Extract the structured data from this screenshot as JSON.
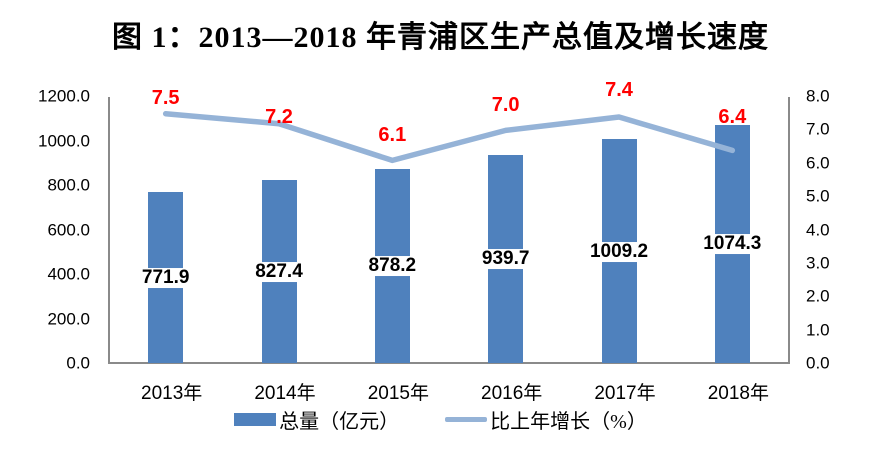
{
  "title": "图 1：2013—2018 年青浦区生产总值及增长速度",
  "chart_data": {
    "type": "bar+line",
    "categories": [
      "2013年",
      "2014年",
      "2015年",
      "2016年",
      "2017年",
      "2018年"
    ],
    "series": [
      {
        "name": "总量（亿元）",
        "type": "bar",
        "axis": "left",
        "color": "#4F81BD",
        "values": [
          771.9,
          827.4,
          878.2,
          939.7,
          1009.2,
          1074.3
        ],
        "labels": [
          "771.9",
          "827.4",
          "878.2",
          "939.7",
          "1009.2",
          "1074.3"
        ],
        "label_color": "#000000"
      },
      {
        "name": "比上年增长（%）",
        "type": "line",
        "axis": "right",
        "color": "#95B3D7",
        "values": [
          7.5,
          7.2,
          6.1,
          7.0,
          7.4,
          6.4
        ],
        "labels": [
          "7.5",
          "7.2",
          "6.1",
          "7.0",
          "7.4",
          "6.4"
        ],
        "label_color": "#FF0000"
      }
    ],
    "left_axis": {
      "min": 0,
      "max": 1200,
      "step": 200,
      "tick_labels": [
        "1200.0",
        "1000.0",
        "800.0",
        "600.0",
        "400.0",
        "200.0",
        "0.0"
      ]
    },
    "right_axis": {
      "min": 0,
      "max": 8,
      "step": 1,
      "tick_labels": [
        "8.0",
        "7.0",
        "6.0",
        "5.0",
        "4.0",
        "3.0",
        "2.0",
        "1.0",
        "0.0"
      ]
    },
    "legend": [
      {
        "label": "总量（亿元）",
        "swatch": "bar",
        "color": "#4F81BD"
      },
      {
        "label": "比上年增长（%）",
        "swatch": "line",
        "color": "#95B3D7"
      }
    ],
    "grid": "off",
    "legend_position": "bottom-center"
  }
}
